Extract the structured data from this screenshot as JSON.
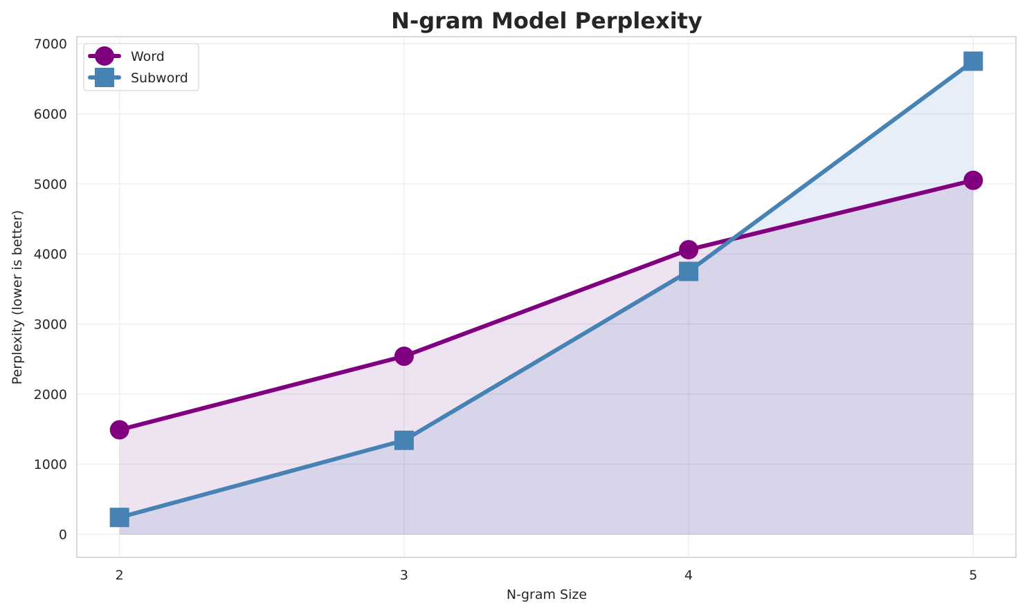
{
  "chart_data": {
    "type": "line",
    "title": "N-gram Model Perplexity",
    "xlabel": "N-gram Size",
    "ylabel": "Perplexity (lower is better)",
    "x": [
      2,
      3,
      4,
      5
    ],
    "x_tick_labels": [
      "2",
      "3",
      "4",
      "5"
    ],
    "y_tick_labels": [
      "0",
      "1000",
      "2000",
      "3000",
      "4000",
      "5000",
      "6000",
      "7000"
    ],
    "y_ticks": [
      0,
      1000,
      2000,
      3000,
      4000,
      5000,
      6000,
      7000
    ],
    "xlim": [
      1.85,
      5.15
    ],
    "ylim": [
      -330,
      7100
    ],
    "grid": true,
    "legend_position": "top-left",
    "series": [
      {
        "name": "Word",
        "values": [
          1490,
          2540,
          4060,
          5050
        ],
        "color": "#800080",
        "fill": "#eee3f1",
        "marker": "circle"
      },
      {
        "name": "Subword",
        "values": [
          240,
          1340,
          3750,
          6750
        ],
        "color": "#4682b4",
        "fill": "#e8eef7",
        "marker": "square"
      }
    ]
  }
}
